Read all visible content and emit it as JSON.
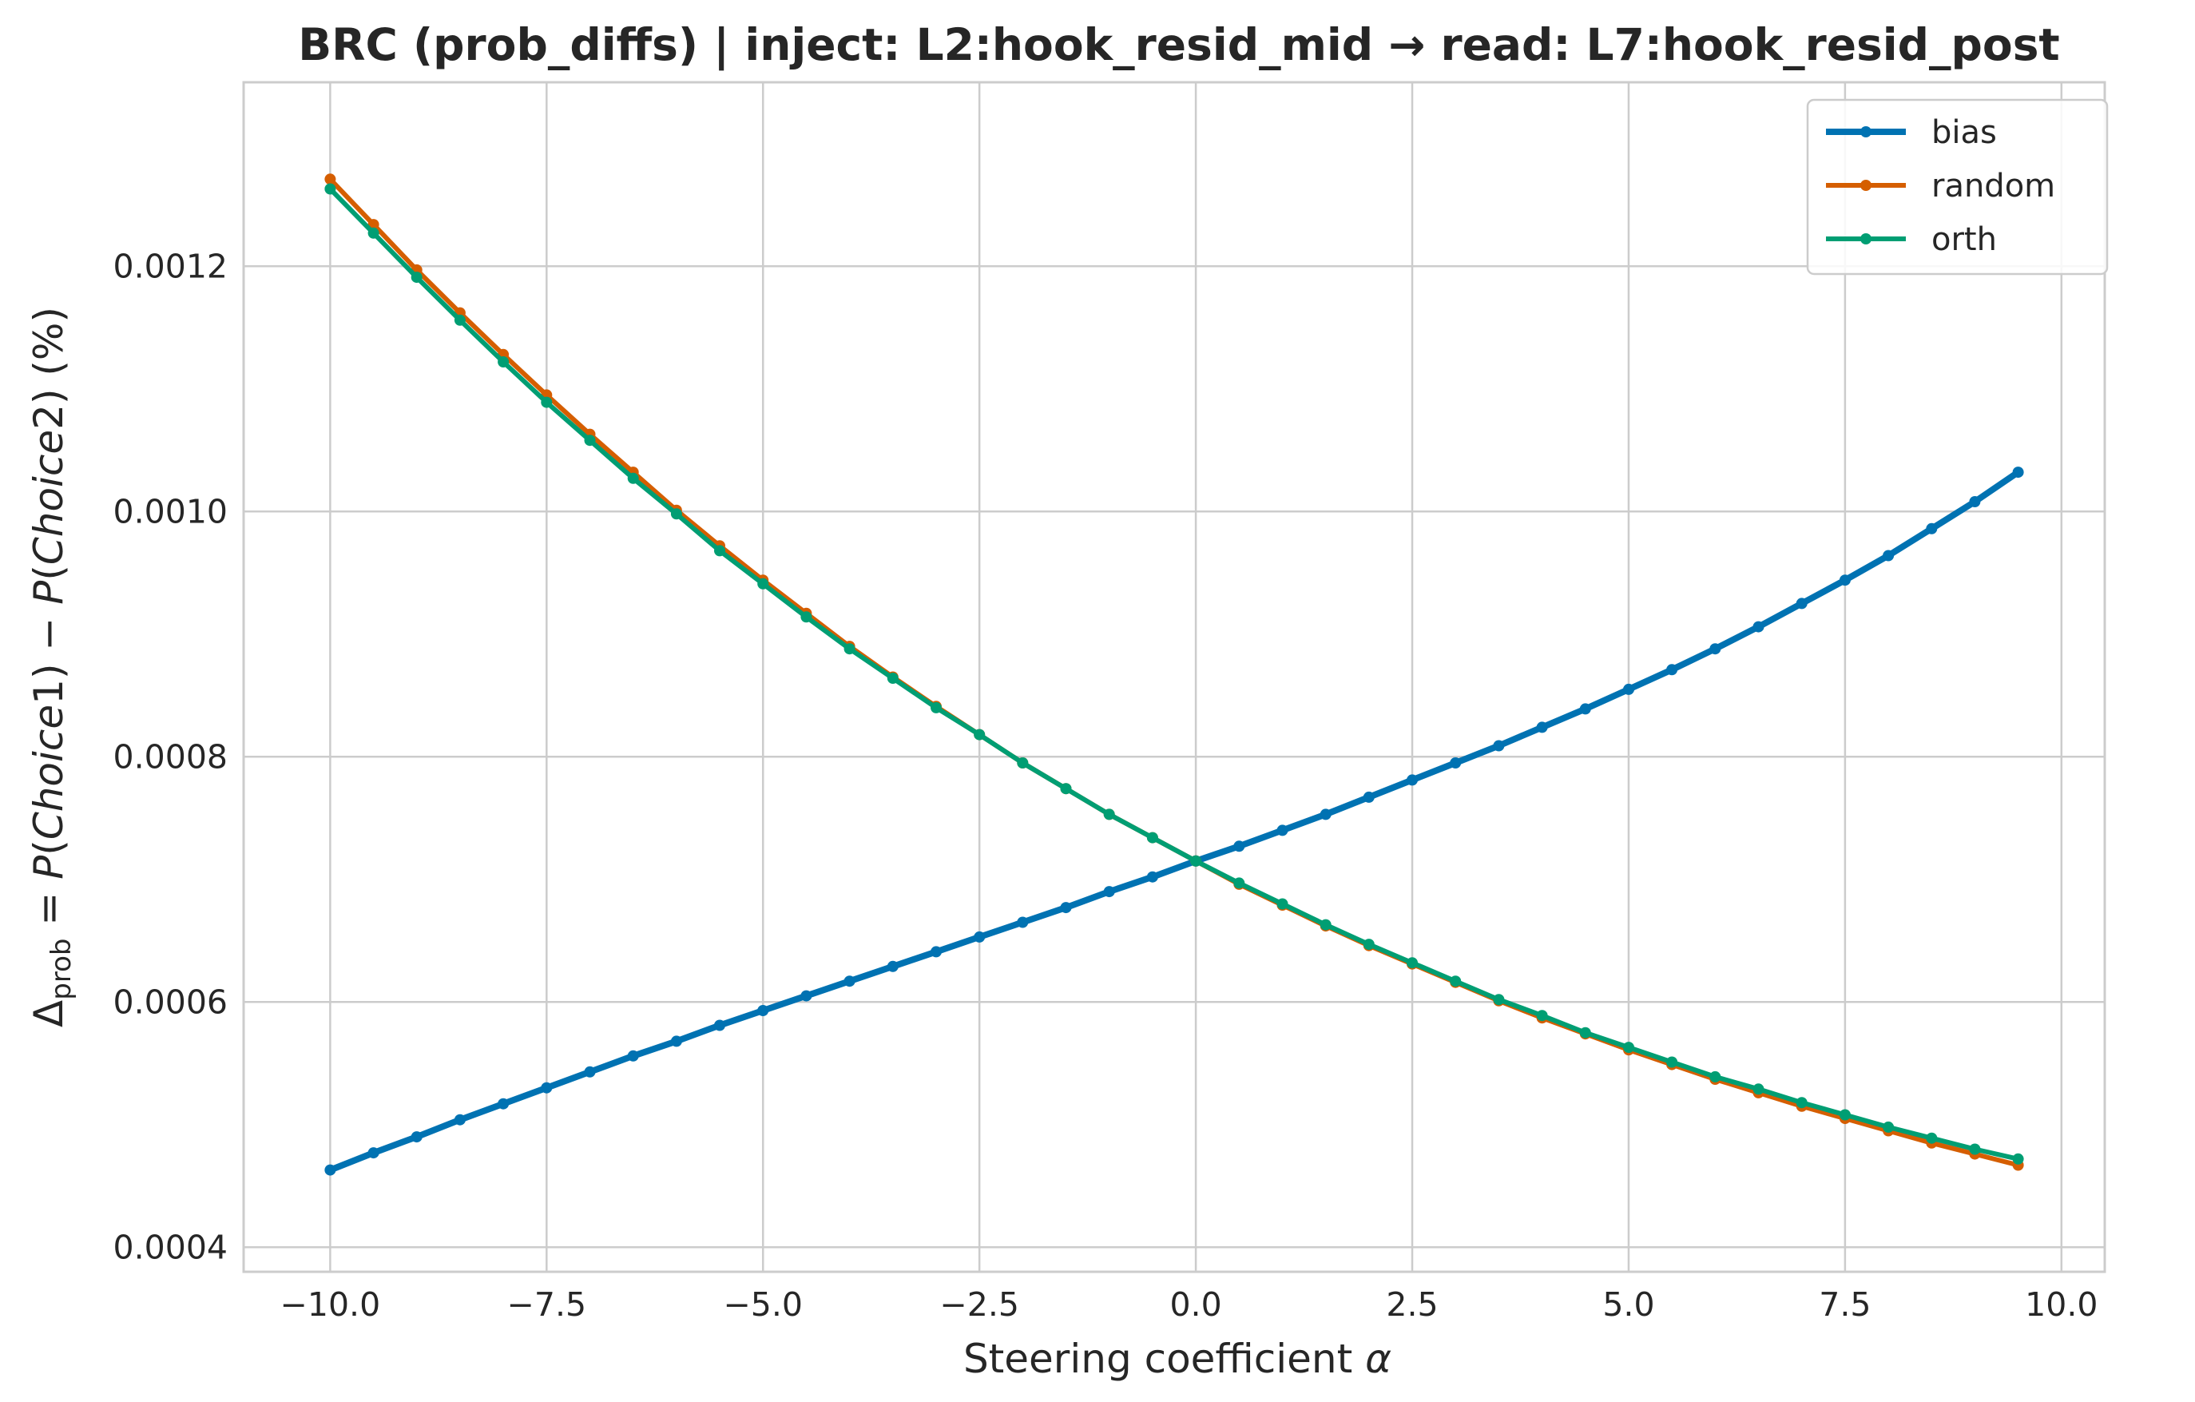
{
  "chart_data": {
    "type": "line",
    "title": "BRC (prob_diffs) | inject: L2:hook_resid_mid → read: L7:hook_resid_post",
    "xlabel": "Steering coefficient α",
    "ylabel": "Δprob = P(Choice1) − P(Choice2) (%)",
    "ylabel_parts": {
      "delta": "Δ",
      "sub": "prob",
      "eq": " = ",
      "p1": "P",
      "open1": "(",
      "choice1": "Choice",
      "one": "1",
      "close1": ")",
      "minus": " − ",
      "p2": "P",
      "open2": "(",
      "choice2": "Choice",
      "two": "2",
      "close2": ")",
      "unit": " (%)"
    },
    "xlabel_parts": {
      "text": "Steering coefficient ",
      "symbol": "α"
    },
    "xlim": [
      -11.0,
      10.5
    ],
    "ylim": [
      0.00038,
      0.00135
    ],
    "xticks": [
      -10.0,
      -7.5,
      -5.0,
      -2.5,
      0.0,
      2.5,
      5.0,
      7.5,
      10.0
    ],
    "xtick_labels": [
      "−10.0",
      "−7.5",
      "−5.0",
      "−2.5",
      "0.0",
      "2.5",
      "5.0",
      "7.5",
      "10.0"
    ],
    "yticks": [
      0.0004,
      0.0006,
      0.0008,
      0.001,
      0.0012
    ],
    "ytick_labels": [
      "0.0004",
      "0.0006",
      "0.0008",
      "0.0010",
      "0.0012"
    ],
    "grid": true,
    "legend_position": "top-right",
    "x": [
      -10.0,
      -9.5,
      -9.0,
      -8.5,
      -8.0,
      -7.5,
      -7.0,
      -6.5,
      -6.0,
      -5.5,
      -5.0,
      -4.5,
      -4.0,
      -3.5,
      -3.0,
      -2.5,
      -2.0,
      -1.5,
      -1.0,
      -0.5,
      0.0,
      0.5,
      1.0,
      1.5,
      2.0,
      2.5,
      3.0,
      3.5,
      4.0,
      4.5,
      5.0,
      5.5,
      6.0,
      6.5,
      7.0,
      7.5,
      8.0,
      8.5,
      9.0,
      9.5
    ],
    "series": [
      {
        "name": "bias",
        "color": "#0072b2",
        "width": 8,
        "values": [
          0.000463,
          0.000477,
          0.00049,
          0.000504,
          0.000517,
          0.00053,
          0.000543,
          0.000556,
          0.000568,
          0.000581,
          0.000593,
          0.000605,
          0.000617,
          0.000629,
          0.000641,
          0.000653,
          0.000665,
          0.000677,
          0.00069,
          0.000702,
          0.000715,
          0.000727,
          0.00074,
          0.000753,
          0.000767,
          0.000781,
          0.000795,
          0.000809,
          0.000824,
          0.000839,
          0.000855,
          0.000871,
          0.000888,
          0.000906,
          0.000925,
          0.000944,
          0.000964,
          0.000986,
          0.001008,
          0.001032
        ]
      },
      {
        "name": "random",
        "color": "#d55e00",
        "width": 6,
        "values": [
          0.001271,
          0.001234,
          0.001197,
          0.001162,
          0.001128,
          0.001095,
          0.001063,
          0.001032,
          0.001001,
          0.000972,
          0.000944,
          0.000917,
          0.00089,
          0.000865,
          0.000841,
          0.000818,
          0.000795,
          0.000774,
          0.000753,
          0.000734,
          0.000715,
          0.000696,
          0.000679,
          0.000662,
          0.000646,
          0.000631,
          0.000616,
          0.000601,
          0.000587,
          0.000574,
          0.000561,
          0.000549,
          0.000537,
          0.000526,
          0.000515,
          0.000505,
          0.000495,
          0.000485,
          0.000476,
          0.000467
        ]
      },
      {
        "name": "orth",
        "color": "#009e73",
        "width": 6,
        "values": [
          0.001263,
          0.001227,
          0.001191,
          0.001156,
          0.001122,
          0.001089,
          0.001058,
          0.001027,
          0.000998,
          0.000968,
          0.000941,
          0.000914,
          0.000888,
          0.000864,
          0.00084,
          0.000818,
          0.000795,
          0.000774,
          0.000753,
          0.000734,
          0.000715,
          0.000697,
          0.00068,
          0.000663,
          0.000647,
          0.000632,
          0.000617,
          0.000602,
          0.000589,
          0.000575,
          0.000563,
          0.000551,
          0.000539,
          0.000529,
          0.000518,
          0.000508,
          0.000498,
          0.000489,
          0.00048,
          0.000472
        ]
      }
    ]
  }
}
